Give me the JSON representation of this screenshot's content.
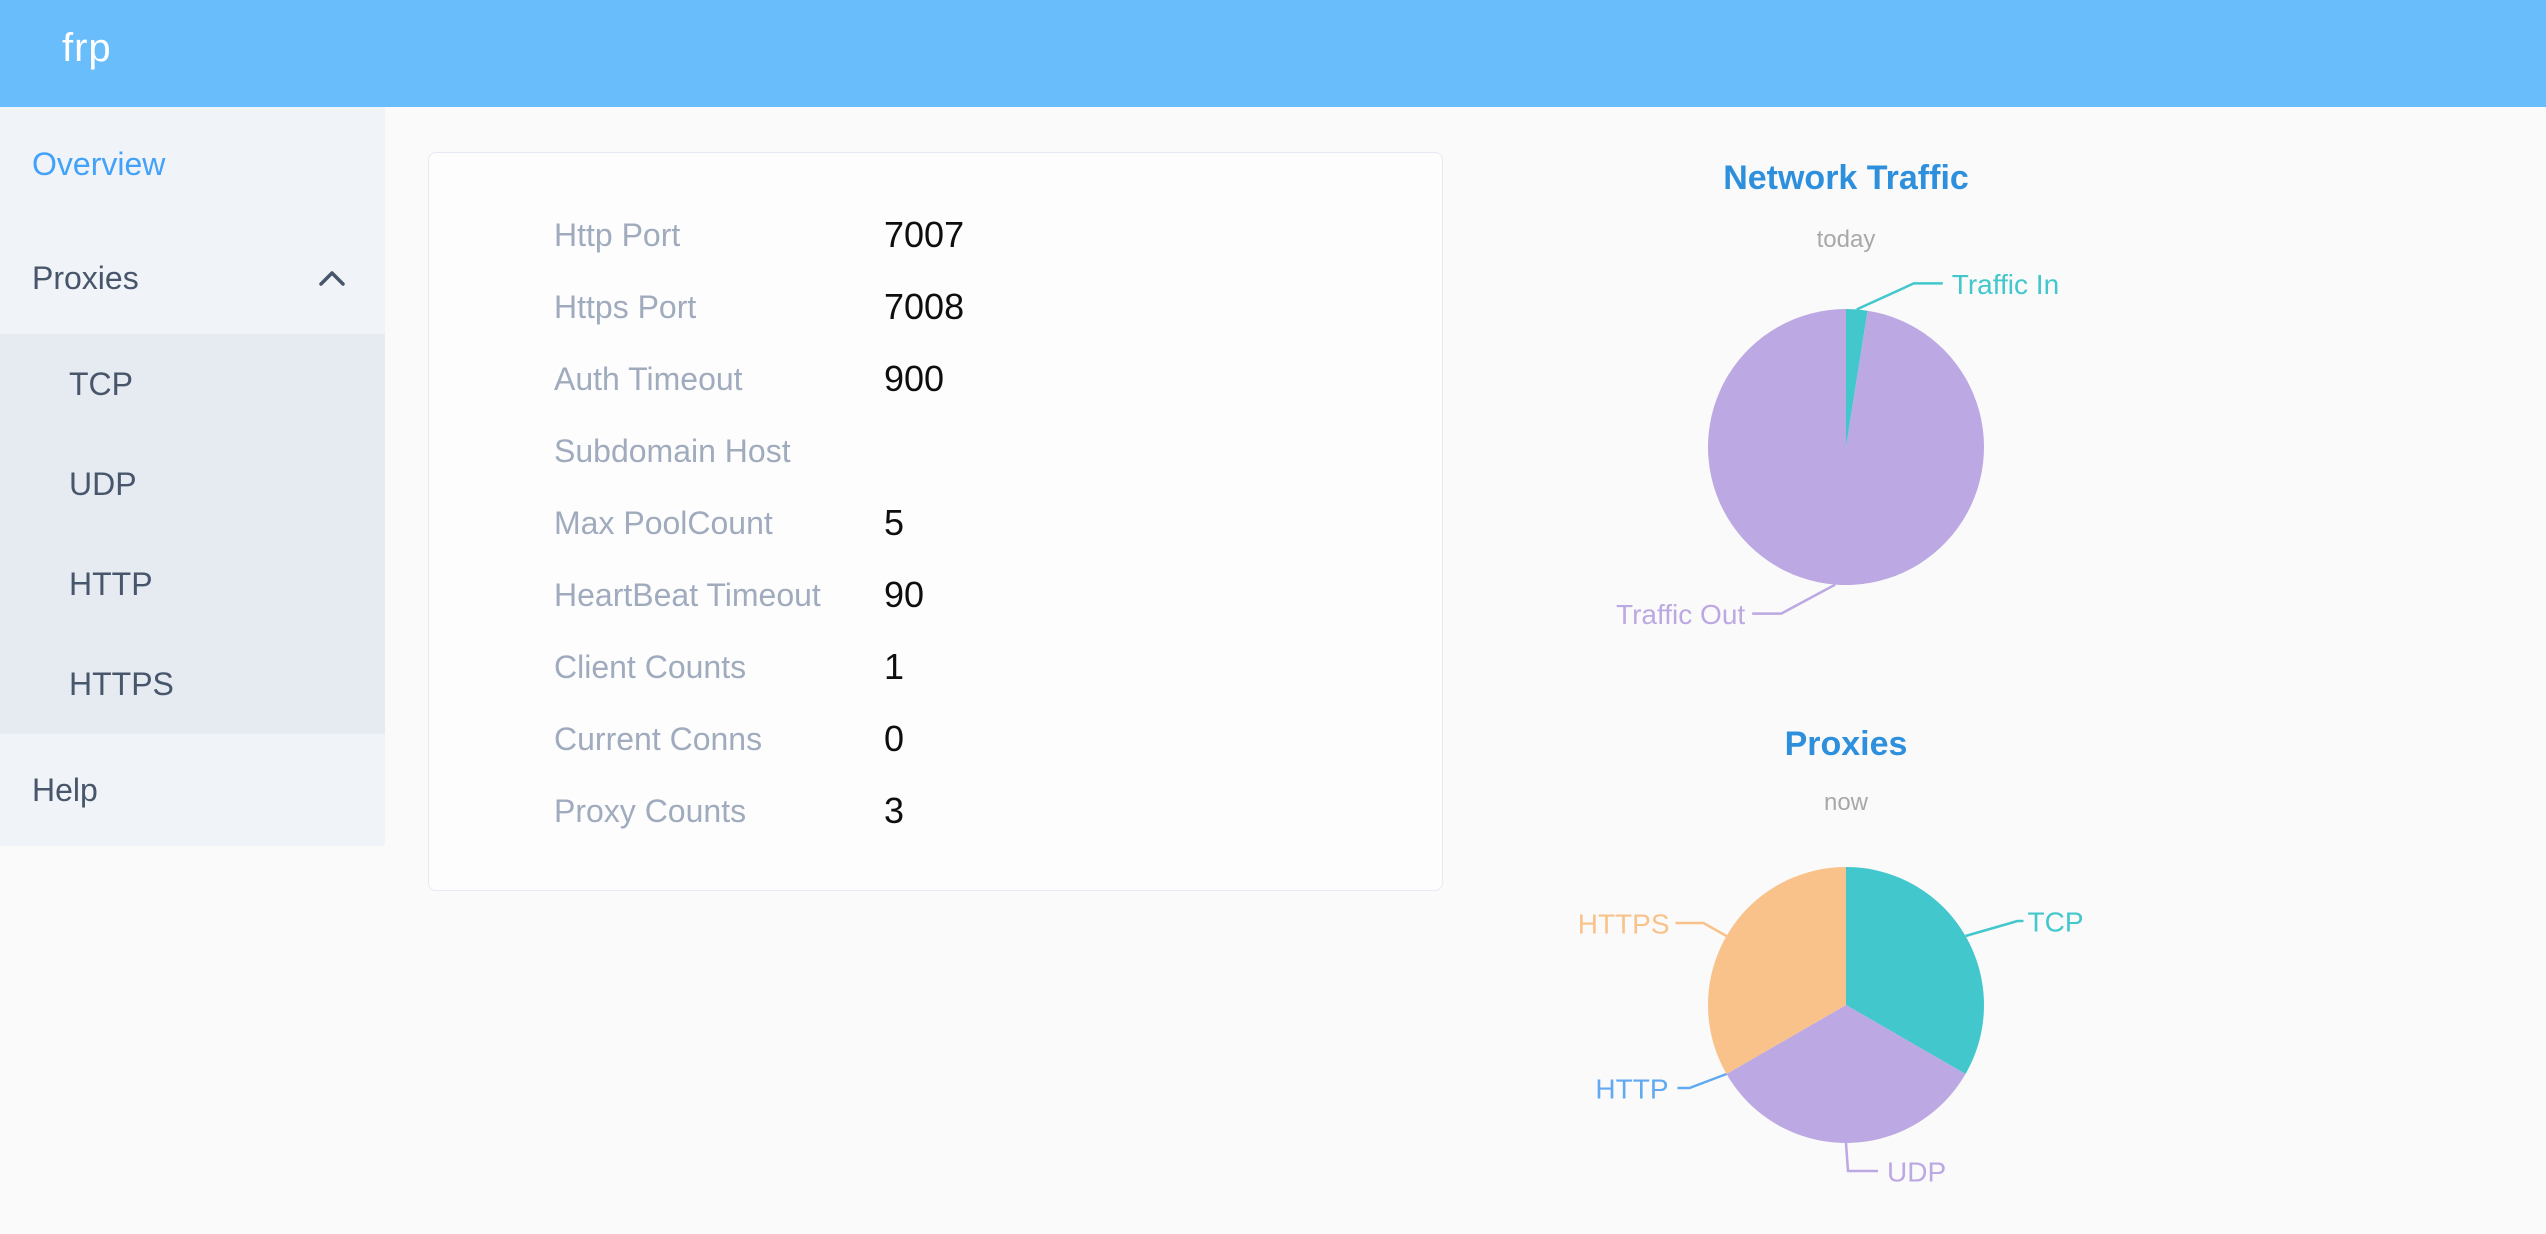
{
  "header": {
    "logo": "frp"
  },
  "sidebar": {
    "items": [
      {
        "label": "Overview",
        "active": true
      },
      {
        "label": "Proxies",
        "expanded": true,
        "children": [
          "TCP",
          "UDP",
          "HTTP",
          "HTTPS"
        ]
      },
      {
        "label": "Help",
        "active": false
      }
    ]
  },
  "server_info": {
    "rows": [
      {
        "label": "Http Port",
        "value": "7007"
      },
      {
        "label": "Https Port",
        "value": "7008"
      },
      {
        "label": "Auth Timeout",
        "value": "900"
      },
      {
        "label": "Subdomain Host",
        "value": ""
      },
      {
        "label": "Max PoolCount",
        "value": "5"
      },
      {
        "label": "HeartBeat Timeout",
        "value": "90"
      },
      {
        "label": "Client Counts",
        "value": "1"
      },
      {
        "label": "Current Conns",
        "value": "0"
      },
      {
        "label": "Proxy Counts",
        "value": "3"
      }
    ]
  },
  "chart_data": [
    {
      "type": "pie",
      "title": "Network Traffic",
      "subtitle": "today",
      "label_position": "outside",
      "value_unit": "percent_of_circle_estimated",
      "series": [
        {
          "name": "Traffic In",
          "value": 2.5,
          "color": "#41c7cc"
        },
        {
          "name": "Traffic Out",
          "value": 97.5,
          "color": "#bca8e2"
        }
      ]
    },
    {
      "type": "pie",
      "title": "Proxies",
      "subtitle": "now",
      "label_position": "outside",
      "value_unit": "proxy_count",
      "series": [
        {
          "name": "TCP",
          "value": 1,
          "color": "#41c7cc"
        },
        {
          "name": "UDP",
          "value": 1,
          "color": "#bca8e2"
        },
        {
          "name": "HTTP",
          "value": 0,
          "color": "#61aaf1"
        },
        {
          "name": "HTTPS",
          "value": 1,
          "color": "#f9c28b"
        }
      ]
    }
  ],
  "colors": {
    "header_bg": "#6abdfb",
    "sidebar_bg": "#f0f3f7",
    "submenu_bg": "#e6eaf1",
    "menu_text": "#47566b",
    "active_menu_text": "#42a1f8",
    "card_label": "#a0abbe",
    "card_value": "#0e0e0e",
    "chart_title": "#2e90dc",
    "chart_subtitle": "#a8a8a8"
  }
}
